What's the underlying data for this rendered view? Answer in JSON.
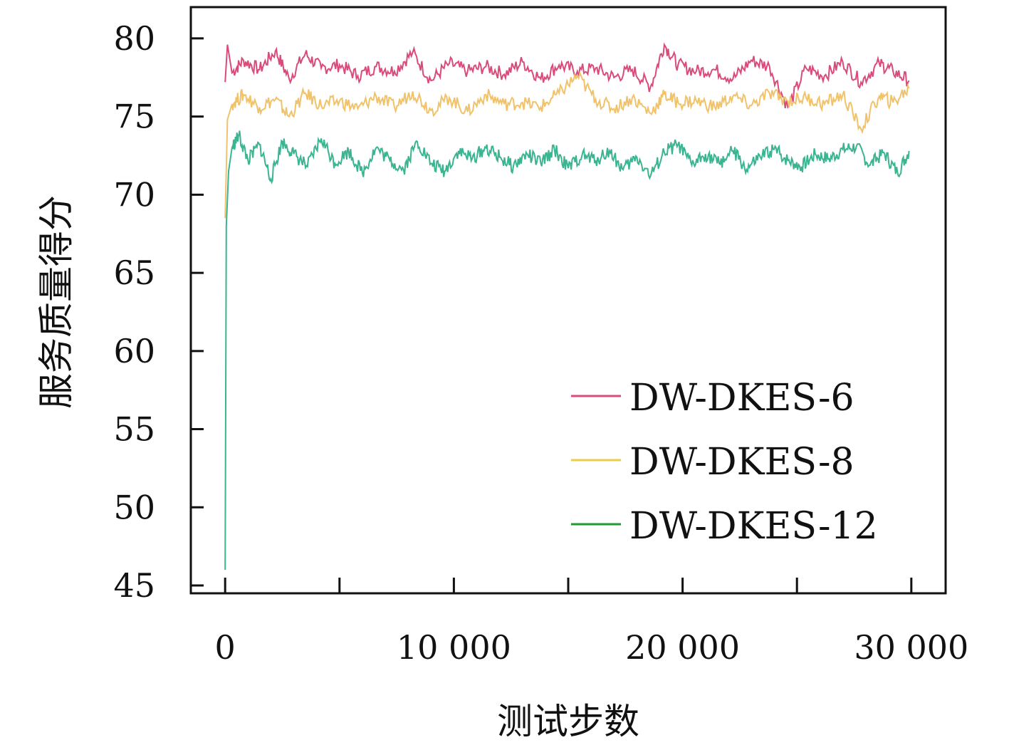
{
  "chart_data": {
    "type": "line",
    "xlabel": "测试步数",
    "ylabel": "服务质量得分",
    "xlim": [
      -1500,
      31500
    ],
    "ylim": [
      44.5,
      82
    ],
    "xticks": [
      0,
      5000,
      10000,
      15000,
      20000,
      25000,
      30000
    ],
    "xtick_labels": [
      "0",
      "10 000",
      "20 000",
      "30 000"
    ],
    "xtick_label_values": [
      0,
      10000,
      20000,
      30000
    ],
    "yticks": [
      45,
      50,
      55,
      60,
      65,
      70,
      75,
      80
    ],
    "ytick_labels": [
      "45",
      "50",
      "55",
      "60",
      "65",
      "70",
      "75",
      "80"
    ],
    "grid": false,
    "legend_position": "bottom-right",
    "series": [
      {
        "name": "DW-DKES-6",
        "color": "#d94b79",
        "x": [
          0,
          100,
          300,
          800,
          1500,
          2200,
          2800,
          3500,
          4200,
          5000,
          5800,
          6600,
          7400,
          8200,
          9000,
          9800,
          10600,
          11400,
          12200,
          13000,
          13800,
          14600,
          15400,
          16200,
          17000,
          17800,
          18600,
          19200,
          19800,
          20600,
          21400,
          22200,
          23000,
          23800,
          24600,
          25400,
          26200,
          27000,
          27800,
          28600,
          29200,
          29900
        ],
        "y": [
          77.2,
          79.6,
          77.8,
          78.6,
          78.0,
          79.2,
          77.4,
          79.0,
          78.1,
          78.3,
          77.6,
          78.2,
          77.9,
          79.1,
          77.3,
          78.4,
          77.9,
          78.2,
          77.7,
          78.5,
          77.4,
          78.3,
          77.9,
          78.1,
          77.5,
          78.0,
          76.9,
          79.6,
          78.3,
          77.9,
          78.0,
          77.4,
          78.6,
          78.2,
          75.6,
          78.1,
          77.6,
          78.5,
          77.2,
          78.4,
          77.9,
          77.3
        ]
      },
      {
        "name": "DW-DKES-8",
        "color": "#f0c26a",
        "x": [
          0,
          100,
          300,
          800,
          1500,
          2200,
          2800,
          3500,
          4200,
          5000,
          5800,
          6600,
          7400,
          8200,
          9000,
          9800,
          10600,
          11400,
          12200,
          13000,
          13800,
          14600,
          15400,
          16200,
          17000,
          17800,
          18600,
          19200,
          19800,
          20600,
          21400,
          22200,
          23000,
          23800,
          24600,
          25400,
          26200,
          27000,
          27800,
          28600,
          29200,
          29900
        ],
        "y": [
          68.5,
          74.8,
          75.8,
          76.4,
          75.6,
          76.1,
          75.0,
          76.5,
          75.7,
          76.0,
          75.5,
          76.3,
          75.6,
          76.6,
          75.4,
          76.2,
          75.3,
          76.4,
          75.8,
          75.9,
          75.6,
          76.5,
          77.6,
          76.1,
          75.5,
          76.2,
          75.2,
          76.4,
          75.9,
          76.0,
          75.6,
          76.3,
          75.7,
          76.5,
          76.0,
          76.2,
          75.8,
          76.4,
          74.2,
          76.3,
          75.9,
          76.8
        ]
      },
      {
        "name": "DW-DKES-12",
        "color": "#3ab491",
        "x": [
          0,
          50,
          150,
          300,
          600,
          1000,
          1500,
          2000,
          2500,
          3000,
          3600,
          4200,
          4800,
          5400,
          6000,
          6600,
          7200,
          7800,
          8400,
          9000,
          9600,
          10200,
          10800,
          11400,
          12000,
          12600,
          13200,
          13800,
          14400,
          15000,
          15600,
          16200,
          16800,
          17400,
          18000,
          18600,
          19200,
          19800,
          20400,
          21000,
          21600,
          22200,
          22800,
          23400,
          24000,
          24600,
          25200,
          25800,
          26400,
          27000,
          27600,
          28200,
          28800,
          29400,
          29900
        ],
        "y": [
          46,
          68.0,
          71.5,
          73.0,
          73.8,
          72.2,
          73.2,
          71.0,
          73.4,
          72.6,
          71.8,
          73.6,
          72.0,
          72.8,
          71.4,
          73.0,
          72.2,
          71.6,
          73.4,
          72.0,
          71.5,
          72.8,
          72.3,
          73.0,
          72.4,
          71.8,
          72.6,
          72.0,
          72.9,
          71.7,
          72.5,
          72.2,
          72.8,
          71.6,
          72.4,
          71.2,
          72.7,
          73.2,
          71.9,
          72.6,
          72.0,
          72.8,
          71.6,
          72.4,
          72.9,
          72.2,
          71.8,
          72.6,
          72.3,
          72.9,
          73.1,
          71.9,
          72.7,
          71.4,
          72.8
        ]
      }
    ]
  }
}
